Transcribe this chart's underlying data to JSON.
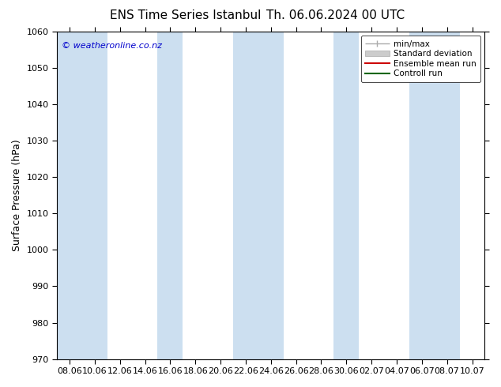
{
  "title_left": "ENS Time Series Istanbul",
  "title_right": "Th. 06.06.2024 00 UTC",
  "ylabel": "Surface Pressure (hPa)",
  "ylim": [
    970,
    1060
  ],
  "yticks": [
    970,
    980,
    990,
    1000,
    1010,
    1020,
    1030,
    1040,
    1050,
    1060
  ],
  "xtick_labels": [
    "08.06",
    "10.06",
    "12.06",
    "14.06",
    "16.06",
    "18.06",
    "20.06",
    "22.06",
    "24.06",
    "26.06",
    "28.06",
    "30.06",
    "02.07",
    "04.07",
    "06.07",
    "08.07",
    "10.07"
  ],
  "copyright_text": "© weatheronline.co.nz",
  "legend_entries": [
    "min/max",
    "Standard deviation",
    "Ensemble mean run",
    "Controll run"
  ],
  "band_color": "#ccdff0",
  "band_positions": [
    0,
    1,
    4,
    7,
    8,
    11,
    14,
    15
  ],
  "bg_color": "#ffffff",
  "plot_bg_color": "#ffffff",
  "title_fontsize": 11,
  "label_fontsize": 9,
  "tick_fontsize": 8,
  "copyright_fontsize": 8,
  "copyright_color": "#0000cc"
}
